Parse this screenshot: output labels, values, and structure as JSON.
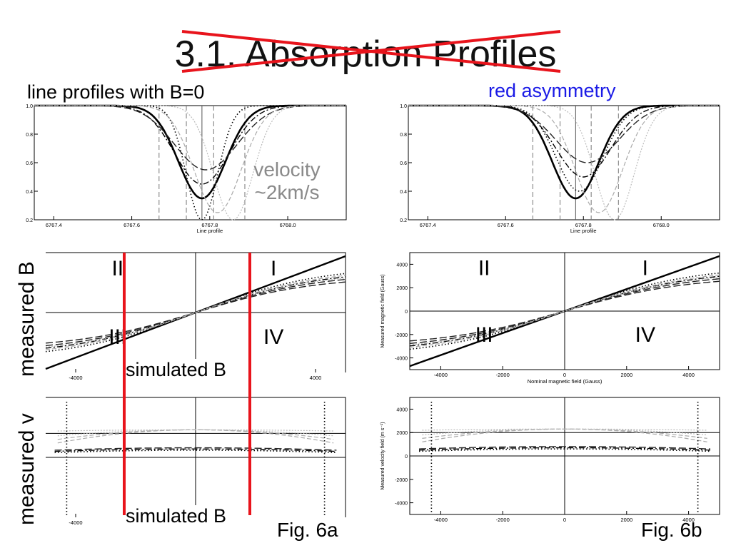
{
  "slide": {
    "title": "3.1. Absorption Profiles",
    "label_left": "line profiles with B=0",
    "label_right": "red asymmetry",
    "velocity_note_line1": "velocity",
    "velocity_note_line2": "~2km/s",
    "measured_b": "measured B",
    "measured_v": "measured v",
    "simulated_b_1": "simulated B",
    "simulated_b_2": "simulated B",
    "fig_a": "Fig. 6a",
    "fig_b": "Fig. 6b",
    "colors": {
      "red_marks": "#e8141c",
      "blue_label": "#1a1ae6",
      "grey_note": "#8a8a8a"
    }
  },
  "chart_data": [
    {
      "type": "line",
      "panel": "6a-top",
      "xlabel": "Line profile",
      "x_ticks": [
        "6767.4",
        "6767.6",
        "6767.8",
        "6768.0"
      ],
      "y_ticks": [
        "0.2",
        "0.4",
        "0.6",
        "0.8",
        "1.0"
      ],
      "xlim": [
        6767.35,
        6768.15
      ],
      "ylim": [
        0.2,
        1.0
      ],
      "series": [
        {
          "style": "solid-thick",
          "center": 6767.78,
          "depth": 0.65,
          "width": 0.06
        },
        {
          "style": "dotted",
          "center": 6767.78,
          "depth": 0.8,
          "width": 0.04
        },
        {
          "style": "dash-dot",
          "center": 6767.78,
          "depth": 0.55,
          "width": 0.07
        },
        {
          "style": "long-dash",
          "center": 6767.79,
          "depth": 0.45,
          "width": 0.08
        },
        {
          "style": "grey-dashed",
          "center": 6767.82,
          "depth": 0.75,
          "width": 0.06
        },
        {
          "style": "grey-dotted",
          "center": 6767.86,
          "depth": 0.8,
          "width": 0.05
        }
      ]
    },
    {
      "type": "line",
      "panel": "6b-top",
      "xlabel": "Line profile",
      "x_ticks": [
        "6767.4",
        "6767.6",
        "6767.8",
        "6768.0"
      ],
      "y_ticks": [
        "0.2",
        "0.4",
        "0.6",
        "0.8",
        "1.0"
      ],
      "xlim": [
        6767.35,
        6768.15
      ],
      "ylim": [
        0.2,
        1.0
      ],
      "series": [
        {
          "style": "solid-thick",
          "center": 6767.78,
          "depth": 0.65,
          "width": 0.06
        },
        {
          "style": "dotted",
          "center": 6767.79,
          "depth": 0.6,
          "width": 0.06
        },
        {
          "style": "dash-dot",
          "center": 6767.8,
          "depth": 0.5,
          "width": 0.07
        },
        {
          "style": "long-dash",
          "center": 6767.81,
          "depth": 0.4,
          "width": 0.08
        },
        {
          "style": "grey-dashed",
          "center": 6767.84,
          "depth": 0.75,
          "width": 0.06
        },
        {
          "style": "grey-dotted",
          "center": 6767.88,
          "depth": 0.8,
          "width": 0.05
        }
      ]
    },
    {
      "type": "line",
      "panel": "6a-middle",
      "x_ticks": [
        "-4000",
        "4000"
      ],
      "quadrants": [
        "II",
        "I",
        "III",
        "IV"
      ],
      "xlim": [
        -5000,
        5000
      ],
      "ylim": [
        -5000,
        5000
      ]
    },
    {
      "type": "line",
      "panel": "6b-middle",
      "xlabel": "Nominal magnetic field (Gauss)",
      "ylabel": "Measured magnetic field (Gauss)",
      "x_ticks": [
        "-4000",
        "-2000",
        "0",
        "2000",
        "4000"
      ],
      "y_ticks": [
        "4000",
        "2000",
        "0",
        "-2000",
        "-4000"
      ],
      "quadrants": [
        "II",
        "I",
        "III",
        "IV"
      ],
      "xlim": [
        -5000,
        5000
      ],
      "ylim": [
        -5000,
        5000
      ]
    },
    {
      "type": "line",
      "panel": "6a-bottom",
      "x_ticks": [
        "-4000"
      ],
      "xlim": [
        -5000,
        5000
      ],
      "ylim": [
        -5000,
        5000
      ]
    },
    {
      "type": "line",
      "panel": "6b-bottom",
      "ylabel": "Measured velocity field (m s⁻¹)",
      "x_ticks": [
        "-4000",
        "-2000",
        "0",
        "2000",
        "4000"
      ],
      "y_ticks": [
        "4000",
        "2000",
        "0",
        "-2000",
        "-4000"
      ],
      "xlim": [
        -5000,
        5000
      ],
      "ylim": [
        -5000,
        5000
      ]
    }
  ]
}
